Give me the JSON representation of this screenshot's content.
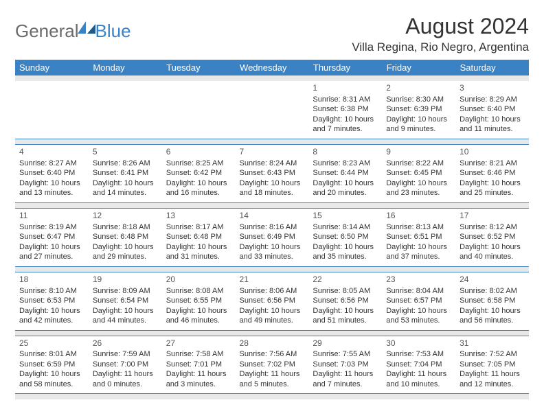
{
  "logo": {
    "part1": "General",
    "part2": "Blue"
  },
  "title": "August 2024",
  "location": "Villa Regina, Rio Negro, Argentina",
  "colors": {
    "header_bg": "#3b82c4",
    "header_text": "#ffffff",
    "banding": "#e8e8e8",
    "text": "#333333",
    "logo_gray": "#6b6b6b",
    "logo_blue": "#3b82c4"
  },
  "day_headers": [
    "Sunday",
    "Monday",
    "Tuesday",
    "Wednesday",
    "Thursday",
    "Friday",
    "Saturday"
  ],
  "weeks": [
    [
      null,
      null,
      null,
      null,
      {
        "n": "1",
        "sr": "Sunrise: 8:31 AM",
        "ss": "Sunset: 6:38 PM",
        "dl1": "Daylight: 10 hours",
        "dl2": "and 7 minutes."
      },
      {
        "n": "2",
        "sr": "Sunrise: 8:30 AM",
        "ss": "Sunset: 6:39 PM",
        "dl1": "Daylight: 10 hours",
        "dl2": "and 9 minutes."
      },
      {
        "n": "3",
        "sr": "Sunrise: 8:29 AM",
        "ss": "Sunset: 6:40 PM",
        "dl1": "Daylight: 10 hours",
        "dl2": "and 11 minutes."
      }
    ],
    [
      {
        "n": "4",
        "sr": "Sunrise: 8:27 AM",
        "ss": "Sunset: 6:40 PM",
        "dl1": "Daylight: 10 hours",
        "dl2": "and 13 minutes."
      },
      {
        "n": "5",
        "sr": "Sunrise: 8:26 AM",
        "ss": "Sunset: 6:41 PM",
        "dl1": "Daylight: 10 hours",
        "dl2": "and 14 minutes."
      },
      {
        "n": "6",
        "sr": "Sunrise: 8:25 AM",
        "ss": "Sunset: 6:42 PM",
        "dl1": "Daylight: 10 hours",
        "dl2": "and 16 minutes."
      },
      {
        "n": "7",
        "sr": "Sunrise: 8:24 AM",
        "ss": "Sunset: 6:43 PM",
        "dl1": "Daylight: 10 hours",
        "dl2": "and 18 minutes."
      },
      {
        "n": "8",
        "sr": "Sunrise: 8:23 AM",
        "ss": "Sunset: 6:44 PM",
        "dl1": "Daylight: 10 hours",
        "dl2": "and 20 minutes."
      },
      {
        "n": "9",
        "sr": "Sunrise: 8:22 AM",
        "ss": "Sunset: 6:45 PM",
        "dl1": "Daylight: 10 hours",
        "dl2": "and 23 minutes."
      },
      {
        "n": "10",
        "sr": "Sunrise: 8:21 AM",
        "ss": "Sunset: 6:46 PM",
        "dl1": "Daylight: 10 hours",
        "dl2": "and 25 minutes."
      }
    ],
    [
      {
        "n": "11",
        "sr": "Sunrise: 8:19 AM",
        "ss": "Sunset: 6:47 PM",
        "dl1": "Daylight: 10 hours",
        "dl2": "and 27 minutes."
      },
      {
        "n": "12",
        "sr": "Sunrise: 8:18 AM",
        "ss": "Sunset: 6:48 PM",
        "dl1": "Daylight: 10 hours",
        "dl2": "and 29 minutes."
      },
      {
        "n": "13",
        "sr": "Sunrise: 8:17 AM",
        "ss": "Sunset: 6:48 PM",
        "dl1": "Daylight: 10 hours",
        "dl2": "and 31 minutes."
      },
      {
        "n": "14",
        "sr": "Sunrise: 8:16 AM",
        "ss": "Sunset: 6:49 PM",
        "dl1": "Daylight: 10 hours",
        "dl2": "and 33 minutes."
      },
      {
        "n": "15",
        "sr": "Sunrise: 8:14 AM",
        "ss": "Sunset: 6:50 PM",
        "dl1": "Daylight: 10 hours",
        "dl2": "and 35 minutes."
      },
      {
        "n": "16",
        "sr": "Sunrise: 8:13 AM",
        "ss": "Sunset: 6:51 PM",
        "dl1": "Daylight: 10 hours",
        "dl2": "and 37 minutes."
      },
      {
        "n": "17",
        "sr": "Sunrise: 8:12 AM",
        "ss": "Sunset: 6:52 PM",
        "dl1": "Daylight: 10 hours",
        "dl2": "and 40 minutes."
      }
    ],
    [
      {
        "n": "18",
        "sr": "Sunrise: 8:10 AM",
        "ss": "Sunset: 6:53 PM",
        "dl1": "Daylight: 10 hours",
        "dl2": "and 42 minutes."
      },
      {
        "n": "19",
        "sr": "Sunrise: 8:09 AM",
        "ss": "Sunset: 6:54 PM",
        "dl1": "Daylight: 10 hours",
        "dl2": "and 44 minutes."
      },
      {
        "n": "20",
        "sr": "Sunrise: 8:08 AM",
        "ss": "Sunset: 6:55 PM",
        "dl1": "Daylight: 10 hours",
        "dl2": "and 46 minutes."
      },
      {
        "n": "21",
        "sr": "Sunrise: 8:06 AM",
        "ss": "Sunset: 6:56 PM",
        "dl1": "Daylight: 10 hours",
        "dl2": "and 49 minutes."
      },
      {
        "n": "22",
        "sr": "Sunrise: 8:05 AM",
        "ss": "Sunset: 6:56 PM",
        "dl1": "Daylight: 10 hours",
        "dl2": "and 51 minutes."
      },
      {
        "n": "23",
        "sr": "Sunrise: 8:04 AM",
        "ss": "Sunset: 6:57 PM",
        "dl1": "Daylight: 10 hours",
        "dl2": "and 53 minutes."
      },
      {
        "n": "24",
        "sr": "Sunrise: 8:02 AM",
        "ss": "Sunset: 6:58 PM",
        "dl1": "Daylight: 10 hours",
        "dl2": "and 56 minutes."
      }
    ],
    [
      {
        "n": "25",
        "sr": "Sunrise: 8:01 AM",
        "ss": "Sunset: 6:59 PM",
        "dl1": "Daylight: 10 hours",
        "dl2": "and 58 minutes."
      },
      {
        "n": "26",
        "sr": "Sunrise: 7:59 AM",
        "ss": "Sunset: 7:00 PM",
        "dl1": "Daylight: 11 hours",
        "dl2": "and 0 minutes."
      },
      {
        "n": "27",
        "sr": "Sunrise: 7:58 AM",
        "ss": "Sunset: 7:01 PM",
        "dl1": "Daylight: 11 hours",
        "dl2": "and 3 minutes."
      },
      {
        "n": "28",
        "sr": "Sunrise: 7:56 AM",
        "ss": "Sunset: 7:02 PM",
        "dl1": "Daylight: 11 hours",
        "dl2": "and 5 minutes."
      },
      {
        "n": "29",
        "sr": "Sunrise: 7:55 AM",
        "ss": "Sunset: 7:03 PM",
        "dl1": "Daylight: 11 hours",
        "dl2": "and 7 minutes."
      },
      {
        "n": "30",
        "sr": "Sunrise: 7:53 AM",
        "ss": "Sunset: 7:04 PM",
        "dl1": "Daylight: 11 hours",
        "dl2": "and 10 minutes."
      },
      {
        "n": "31",
        "sr": "Sunrise: 7:52 AM",
        "ss": "Sunset: 7:05 PM",
        "dl1": "Daylight: 11 hours",
        "dl2": "and 12 minutes."
      }
    ]
  ]
}
